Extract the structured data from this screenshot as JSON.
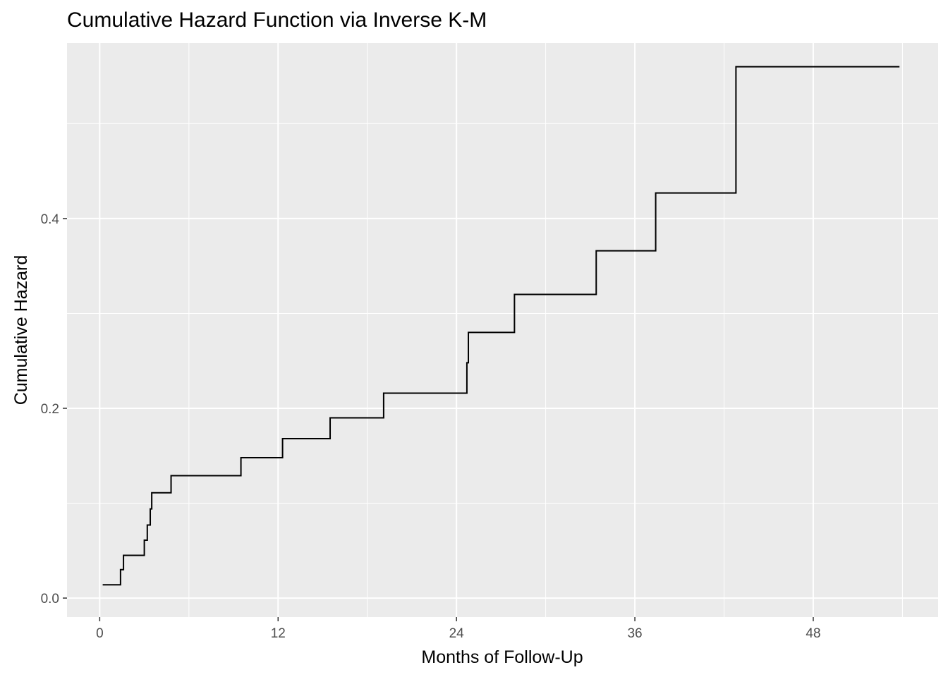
{
  "chart_data": {
    "type": "line",
    "step": true,
    "title": "Cumulative Hazard Function via Inverse K-M",
    "xlabel": "Months of Follow-Up",
    "ylabel": "Cumulative Hazard",
    "xlim": [
      -2.2,
      56.4
    ],
    "ylim": [
      -0.02,
      0.585
    ],
    "x_ticks": [
      0,
      12,
      24,
      36,
      48
    ],
    "x_tick_labels": [
      "0",
      "12",
      "24",
      "36",
      "48"
    ],
    "y_ticks": [
      0.0,
      0.2,
      0.4
    ],
    "y_tick_labels": [
      "0.0",
      "0.2",
      "0.4"
    ],
    "grid": true,
    "background_color": "#ebebeb",
    "gridline_color": "#ffffff",
    "line_color": "#000000",
    "series": [
      {
        "x": [
          0.2,
          1.4,
          1.6,
          3.0,
          3.2,
          3.4,
          3.5,
          4.8,
          9.5,
          12.3,
          15.5,
          19.1,
          24.7,
          24.8,
          27.9,
          33.4,
          37.4,
          42.8,
          53.8
        ],
        "y": [
          0.014,
          0.03,
          0.045,
          0.061,
          0.077,
          0.094,
          0.111,
          0.129,
          0.148,
          0.168,
          0.19,
          0.216,
          0.248,
          0.28,
          0.32,
          0.366,
          0.427,
          0.56,
          0.56
        ]
      }
    ]
  }
}
